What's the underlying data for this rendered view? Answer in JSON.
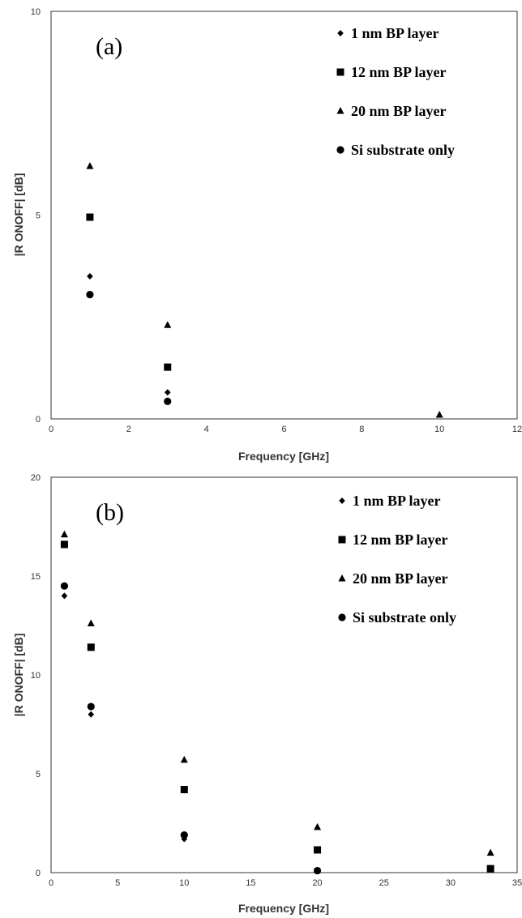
{
  "chart_data": [
    {
      "type": "scatter",
      "panel_label": "(a)",
      "xlabel": "Frequency [GHz]",
      "ylabel": "|R ONOFF| [dB]",
      "xlim": [
        0,
        12
      ],
      "ylim": [
        0,
        10
      ],
      "x_ticks": [
        0,
        2,
        4,
        6,
        8,
        10,
        12
      ],
      "y_ticks": [
        0,
        5,
        10
      ],
      "grid": false,
      "legend_position": "top-right",
      "series": [
        {
          "name": "1 nm BP layer",
          "marker": "diamond",
          "x": [
            1,
            3
          ],
          "y": [
            3.5,
            0.65
          ]
        },
        {
          "name": "12 nm BP layer",
          "marker": "square",
          "x": [
            1,
            3
          ],
          "y": [
            4.95,
            1.27
          ]
        },
        {
          "name": "20 nm BP layer",
          "marker": "triangle",
          "x": [
            1,
            3,
            10
          ],
          "y": [
            6.2,
            2.3,
            0.1
          ]
        },
        {
          "name": "Si substrate only",
          "marker": "circle",
          "x": [
            1,
            3
          ],
          "y": [
            3.05,
            0.43
          ]
        }
      ]
    },
    {
      "type": "scatter",
      "panel_label": "(b)",
      "xlabel": "Frequency [GHz]",
      "ylabel": "|R ONOFF| [dB]",
      "xlim": [
        0,
        35
      ],
      "ylim": [
        0,
        20
      ],
      "x_ticks": [
        0,
        5,
        10,
        15,
        20,
        25,
        30,
        35
      ],
      "y_ticks": [
        0,
        5,
        10,
        15,
        20
      ],
      "grid": false,
      "legend_position": "top-right",
      "series": [
        {
          "name": "1 nm BP layer",
          "marker": "diamond",
          "x": [
            1,
            3,
            10,
            20
          ],
          "y": [
            14.0,
            8.0,
            1.7,
            0.08
          ]
        },
        {
          "name": "12 nm BP layer",
          "marker": "square",
          "x": [
            1,
            3,
            10,
            20,
            33
          ],
          "y": [
            16.6,
            11.4,
            4.2,
            1.15,
            0.2
          ]
        },
        {
          "name": "20 nm BP layer",
          "marker": "triangle",
          "x": [
            1,
            3,
            10,
            20,
            33
          ],
          "y": [
            17.1,
            12.6,
            5.7,
            2.3,
            1.0
          ]
        },
        {
          "name": "Si substrate only",
          "marker": "circle",
          "x": [
            1,
            3,
            10,
            20
          ],
          "y": [
            14.5,
            8.4,
            1.9,
            0.1
          ]
        }
      ]
    }
  ]
}
